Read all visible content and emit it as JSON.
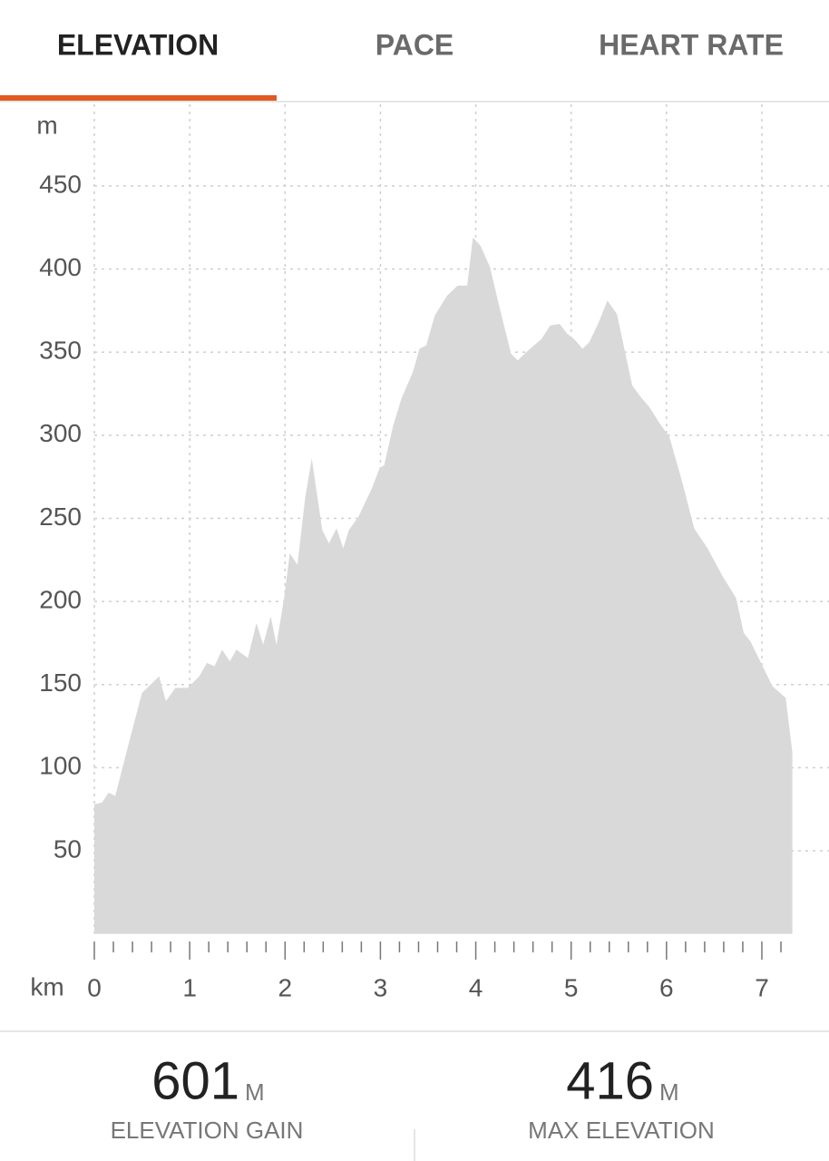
{
  "tabs": [
    "ELEVATION",
    "PACE",
    "HEART RATE"
  ],
  "active_tab": 0,
  "chart_data": {
    "type": "area",
    "y_unit": "m",
    "x_unit": "km",
    "color": "#d9d9d9",
    "grid": true,
    "xlim": [
      0,
      7.32
    ],
    "ylim": [
      0,
      500
    ],
    "xticks": [
      0,
      1,
      2,
      3,
      4,
      5,
      6,
      7
    ],
    "xminorticks": [
      0.2,
      0.4,
      0.6,
      0.8,
      1.2,
      1.4,
      1.6,
      1.8,
      2.2,
      2.4,
      2.6,
      2.8,
      3.2,
      3.4,
      3.6,
      3.8,
      4.2,
      4.4,
      4.6,
      4.8,
      5.2,
      5.4,
      5.6,
      5.8,
      6.2,
      6.4,
      6.6,
      6.8,
      7.2
    ],
    "yticks": [
      50,
      100,
      150,
      200,
      250,
      300,
      350,
      400,
      450
    ],
    "x": [
      0,
      0.08,
      0.15,
      0.22,
      0.34,
      0.5,
      0.68,
      0.75,
      0.85,
      0.98,
      1.1,
      1.18,
      1.26,
      1.34,
      1.42,
      1.49,
      1.61,
      1.7,
      1.77,
      1.85,
      1.91,
      1.99,
      2.05,
      2.13,
      2.21,
      2.28,
      2.39,
      2.46,
      2.54,
      2.61,
      2.67,
      2.77,
      2.91,
      2.99,
      3.04,
      3.13,
      3.22,
      3.34,
      3.41,
      3.48,
      3.57,
      3.7,
      3.81,
      3.91,
      3.97,
      4.05,
      4.15,
      4.24,
      4.37,
      4.44,
      4.53,
      4.69,
      4.78,
      4.88,
      4.96,
      5.03,
      5.12,
      5.19,
      5.29,
      5.38,
      5.48,
      5.64,
      5.73,
      5.82,
      5.93,
      6.03,
      6.16,
      6.29,
      6.43,
      6.59,
      6.73,
      6.81,
      6.88,
      7.0,
      7.11,
      7.25,
      7.32
    ],
    "values": [
      78,
      79,
      85,
      83,
      110,
      145,
      155,
      140,
      148,
      148,
      155,
      163,
      161,
      171,
      164,
      171,
      166,
      187,
      174,
      191,
      174,
      202,
      229,
      222,
      262,
      286,
      243,
      235,
      244,
      232,
      243,
      251,
      268,
      280,
      282,
      305,
      322,
      338,
      352,
      354,
      372,
      384,
      390,
      390,
      419,
      414,
      401,
      379,
      349,
      345,
      350,
      358,
      366,
      367,
      361,
      358,
      352,
      356,
      368,
      381,
      373,
      330,
      323,
      317,
      307,
      299,
      273,
      244,
      232,
      215,
      202,
      181,
      176,
      162,
      149,
      142,
      109
    ]
  },
  "stats": [
    {
      "value": 601,
      "unit": "M",
      "label": "ELEVATION GAIN"
    },
    {
      "value": 416,
      "unit": "M",
      "label": "MAX ELEVATION"
    }
  ]
}
